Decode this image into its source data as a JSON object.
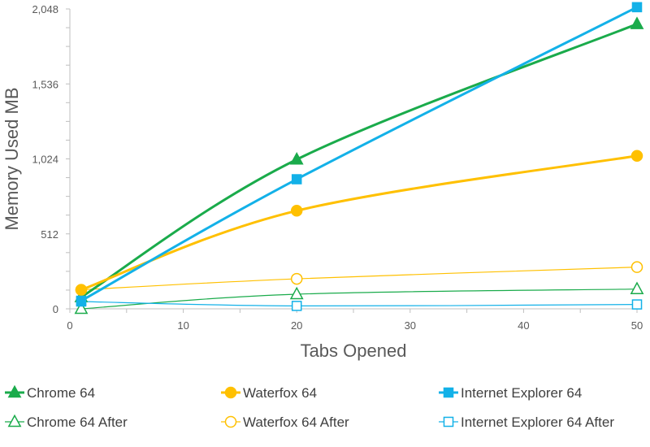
{
  "chart_data": {
    "type": "line",
    "xlabel": "Tabs Opened",
    "ylabel": "Memory Used MB",
    "xlim": [
      0,
      50
    ],
    "ylim": [
      0,
      2048
    ],
    "x_ticks": [
      "0",
      "10",
      "20",
      "30",
      "40",
      "50"
    ],
    "y_ticks": [
      "0",
      "512",
      "1,024",
      "1,536",
      "2,048"
    ],
    "x_tick_values": [
      0,
      10,
      20,
      30,
      40,
      50
    ],
    "y_tick_values": [
      0,
      512,
      1024,
      1536,
      2048
    ],
    "grid": false,
    "legend_position": "bottom",
    "series": [
      {
        "name": "Chrome 64",
        "color": "#1aab4b",
        "marker": "triangle",
        "filled": true,
        "smooth": true,
        "x": [
          1,
          20,
          50
        ],
        "y": [
          80,
          1020,
          1945
        ]
      },
      {
        "name": "Waterfox 64",
        "color": "#ffc000",
        "marker": "circle",
        "filled": true,
        "smooth": true,
        "x": [
          1,
          20,
          50
        ],
        "y": [
          130,
          670,
          1045
        ]
      },
      {
        "name": "Internet Explorer 64",
        "color": "#13b1e8",
        "marker": "square",
        "filled": true,
        "smooth": true,
        "x": [
          1,
          20,
          50
        ],
        "y": [
          55,
          885,
          2060
        ]
      },
      {
        "name": "Chrome 64 After",
        "color": "#1aab4b",
        "marker": "triangle",
        "filled": false,
        "smooth": true,
        "x": [
          1,
          20,
          50
        ],
        "y": [
          0,
          100,
          135
        ]
      },
      {
        "name": "Waterfox 64 After",
        "color": "#ffc000",
        "marker": "circle",
        "filled": false,
        "smooth": true,
        "x": [
          1,
          20,
          50
        ],
        "y": [
          130,
          205,
          285
        ]
      },
      {
        "name": "Internet Explorer 64 After",
        "color": "#13b1e8",
        "marker": "square",
        "filled": false,
        "smooth": true,
        "x": [
          1,
          20,
          50
        ],
        "y": [
          50,
          20,
          30
        ]
      }
    ]
  }
}
